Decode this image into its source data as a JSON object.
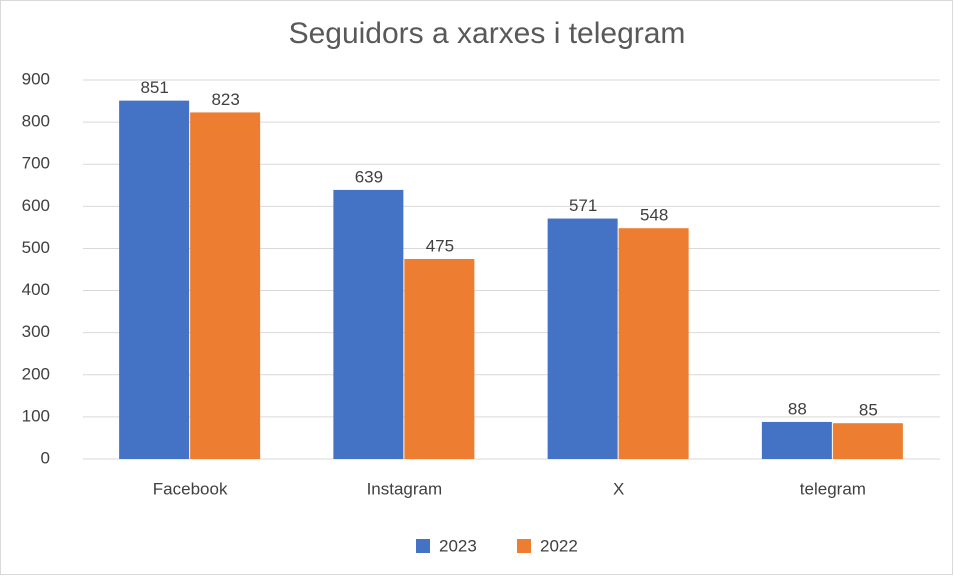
{
  "chart_data": {
    "type": "bar",
    "title": "Seguidors a xarxes i telegram",
    "categories": [
      "Facebook",
      "Instagram",
      "X",
      "telegram"
    ],
    "series": [
      {
        "name": "2023",
        "color": "#4472c4",
        "values": [
          851,
          639,
          571,
          88
        ]
      },
      {
        "name": "2022",
        "color": "#ed7d31",
        "values": [
          823,
          475,
          548,
          85
        ]
      }
    ],
    "ylim": [
      0,
      900
    ],
    "yticks": [
      0,
      100,
      200,
      300,
      400,
      500,
      600,
      700,
      800,
      900
    ],
    "grid": true,
    "legend": "bottom"
  }
}
